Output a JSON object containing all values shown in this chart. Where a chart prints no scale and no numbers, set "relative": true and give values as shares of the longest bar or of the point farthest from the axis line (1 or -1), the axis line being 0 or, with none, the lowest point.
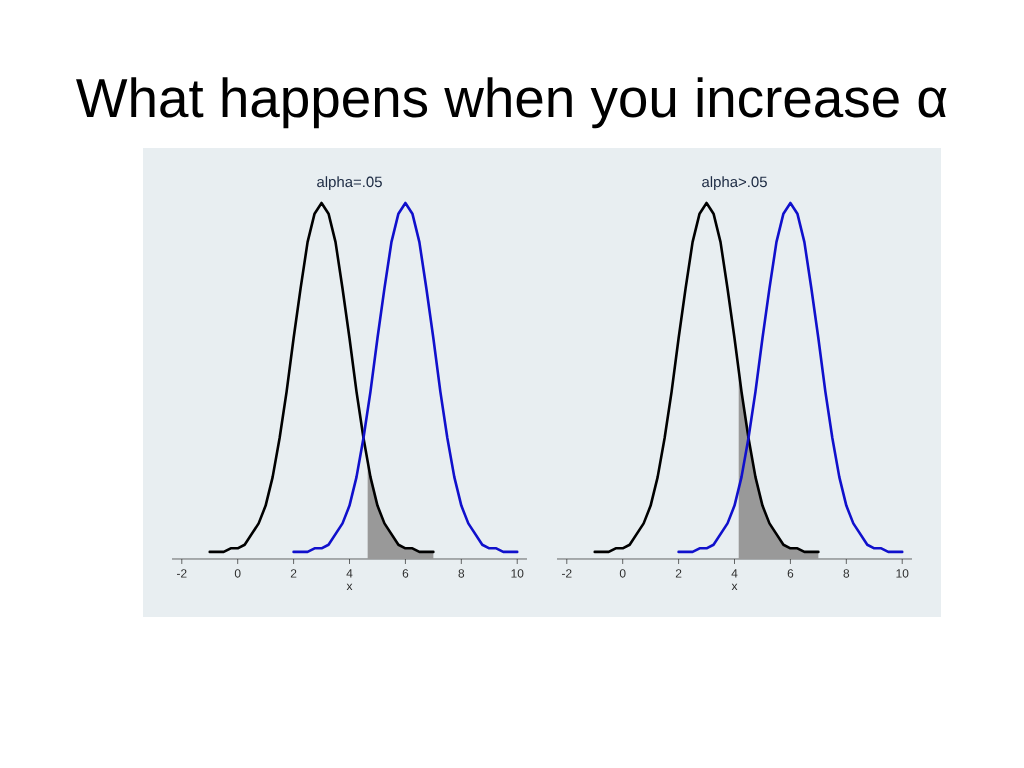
{
  "chart_data": [
    {
      "type": "other",
      "title": "What happens when you increase α"
    },
    {
      "type": "line",
      "title": "alpha=.05",
      "xlabel": "x",
      "relative": true,
      "tick_labels": "x",
      "xlim": [
        -2.35,
        10.35
      ],
      "xticks": [
        -2,
        0,
        2,
        4,
        6,
        8,
        10
      ],
      "series": [
        {
          "type": "area",
          "color": "#999999",
          "x": [
            4.65,
            4.75,
            5,
            5.25,
            5.5,
            5.75,
            6,
            6.25,
            6.5,
            6.75,
            7
          ],
          "values": [
            0.27,
            0.23,
            0.15,
            0.1,
            0.07,
            0.04,
            0.03,
            0.03,
            0.02,
            0.02,
            0.02
          ]
        },
        {
          "color": "#000000",
          "x": [
            -1,
            -0.75,
            -0.5,
            -0.25,
            0,
            0.25,
            0.5,
            0.75,
            1,
            1.25,
            1.5,
            1.75,
            2,
            2.25,
            2.5,
            2.75,
            3,
            3.25,
            3.5,
            3.75,
            4,
            4.25,
            4.5,
            4.75,
            5,
            5.25,
            5.5,
            5.75,
            6,
            6.25,
            6.5,
            6.75,
            7
          ],
          "values": [
            0.02,
            0.02,
            0.02,
            0.03,
            0.03,
            0.04,
            0.07,
            0.1,
            0.15,
            0.23,
            0.34,
            0.47,
            0.62,
            0.76,
            0.89,
            0.97,
            1,
            0.97,
            0.89,
            0.76,
            0.62,
            0.47,
            0.34,
            0.23,
            0.15,
            0.1,
            0.07,
            0.04,
            0.03,
            0.03,
            0.02,
            0.02,
            0.02
          ]
        },
        {
          "color": "#1010cc",
          "x": [
            2,
            2.25,
            2.5,
            2.75,
            3,
            3.25,
            3.5,
            3.75,
            4,
            4.25,
            4.5,
            4.75,
            5,
            5.25,
            5.5,
            5.75,
            6,
            6.25,
            6.5,
            6.75,
            7,
            7.25,
            7.5,
            7.75,
            8,
            8.25,
            8.5,
            8.75,
            9,
            9.25,
            9.5,
            9.75,
            10
          ],
          "values": [
            0.02,
            0.02,
            0.02,
            0.03,
            0.03,
            0.04,
            0.07,
            0.1,
            0.15,
            0.23,
            0.34,
            0.47,
            0.62,
            0.76,
            0.89,
            0.97,
            1,
            0.97,
            0.89,
            0.76,
            0.62,
            0.47,
            0.34,
            0.23,
            0.15,
            0.1,
            0.07,
            0.04,
            0.03,
            0.03,
            0.02,
            0.02,
            0.02
          ]
        }
      ]
    },
    {
      "type": "line",
      "title": "alpha>.05",
      "xlabel": "x",
      "relative": true,
      "tick_labels": "x",
      "xlim": [
        -2.35,
        10.35
      ],
      "xticks": [
        -2,
        0,
        2,
        4,
        6,
        8,
        10
      ],
      "series": [
        {
          "type": "area",
          "color": "#999999",
          "x": [
            4.15,
            4.25,
            4.5,
            4.75,
            5,
            5.25,
            5.5,
            5.75,
            6,
            6.25,
            6.5,
            6.75,
            7
          ],
          "values": [
            0.53,
            0.47,
            0.34,
            0.23,
            0.15,
            0.1,
            0.07,
            0.04,
            0.03,
            0.03,
            0.02,
            0.02,
            0.02
          ]
        },
        {
          "color": "#000000",
          "x": [
            -1,
            -0.75,
            -0.5,
            -0.25,
            0,
            0.25,
            0.5,
            0.75,
            1,
            1.25,
            1.5,
            1.75,
            2,
            2.25,
            2.5,
            2.75,
            3,
            3.25,
            3.5,
            3.75,
            4,
            4.25,
            4.5,
            4.75,
            5,
            5.25,
            5.5,
            5.75,
            6,
            6.25,
            6.5,
            6.75,
            7
          ],
          "values": [
            0.02,
            0.02,
            0.02,
            0.03,
            0.03,
            0.04,
            0.07,
            0.1,
            0.15,
            0.23,
            0.34,
            0.47,
            0.62,
            0.76,
            0.89,
            0.97,
            1,
            0.97,
            0.89,
            0.76,
            0.62,
            0.47,
            0.34,
            0.23,
            0.15,
            0.1,
            0.07,
            0.04,
            0.03,
            0.03,
            0.02,
            0.02,
            0.02
          ]
        },
        {
          "color": "#1010cc",
          "x": [
            2,
            2.25,
            2.5,
            2.75,
            3,
            3.25,
            3.5,
            3.75,
            4,
            4.25,
            4.5,
            4.75,
            5,
            5.25,
            5.5,
            5.75,
            6,
            6.25,
            6.5,
            6.75,
            7,
            7.25,
            7.5,
            7.75,
            8,
            8.25,
            8.5,
            8.75,
            9,
            9.25,
            9.5,
            9.75,
            10
          ],
          "values": [
            0.02,
            0.02,
            0.02,
            0.03,
            0.03,
            0.04,
            0.07,
            0.1,
            0.15,
            0.23,
            0.34,
            0.47,
            0.62,
            0.76,
            0.89,
            0.97,
            1,
            0.97,
            0.89,
            0.76,
            0.62,
            0.47,
            0.34,
            0.23,
            0.15,
            0.1,
            0.07,
            0.04,
            0.03,
            0.03,
            0.02,
            0.02,
            0.02
          ]
        }
      ]
    }
  ]
}
